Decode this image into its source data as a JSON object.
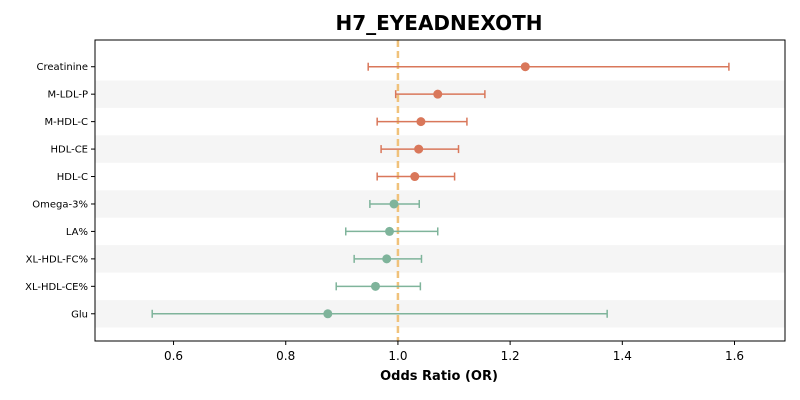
{
  "chart_data": {
    "type": "forest",
    "title": "H7_EYEADNEXOTH",
    "xlabel": "Odds Ratio (OR)",
    "ylabel": "",
    "xlim": [
      0.46,
      1.69
    ],
    "xticks": [
      0.6,
      0.8,
      1.0,
      1.2,
      1.4,
      1.6
    ],
    "xtick_labels": [
      "0.6",
      "0.8",
      "1.0",
      "1.2",
      "1.4",
      "1.6"
    ],
    "reference_line": 1.0,
    "reference_color": "#f0c27b",
    "positive_color": "#d9775a",
    "negative_color": "#7fb49b",
    "band_color": "#f5f5f5",
    "grid": false,
    "rows": [
      {
        "label": "Creatinine",
        "or": 1.227,
        "ci_low": 0.947,
        "ci_high": 1.59
      },
      {
        "label": "M-LDL-P",
        "or": 1.071,
        "ci_low": 0.996,
        "ci_high": 1.155
      },
      {
        "label": "M-HDL-C",
        "or": 1.041,
        "ci_low": 0.963,
        "ci_high": 1.123
      },
      {
        "label": "HDL-CE",
        "or": 1.037,
        "ci_low": 0.97,
        "ci_high": 1.108
      },
      {
        "label": "HDL-C",
        "or": 1.03,
        "ci_low": 0.963,
        "ci_high": 1.101
      },
      {
        "label": "Omega-3%",
        "or": 0.993,
        "ci_low": 0.95,
        "ci_high": 1.038
      },
      {
        "label": "LA%",
        "or": 0.985,
        "ci_low": 0.907,
        "ci_high": 1.071
      },
      {
        "label": "XL-HDL-FC%",
        "or": 0.98,
        "ci_low": 0.922,
        "ci_high": 1.042
      },
      {
        "label": "XL-HDL-CE%",
        "or": 0.96,
        "ci_low": 0.89,
        "ci_high": 1.04
      },
      {
        "label": "Glu",
        "or": 0.875,
        "ci_low": 0.562,
        "ci_high": 1.373
      }
    ]
  }
}
